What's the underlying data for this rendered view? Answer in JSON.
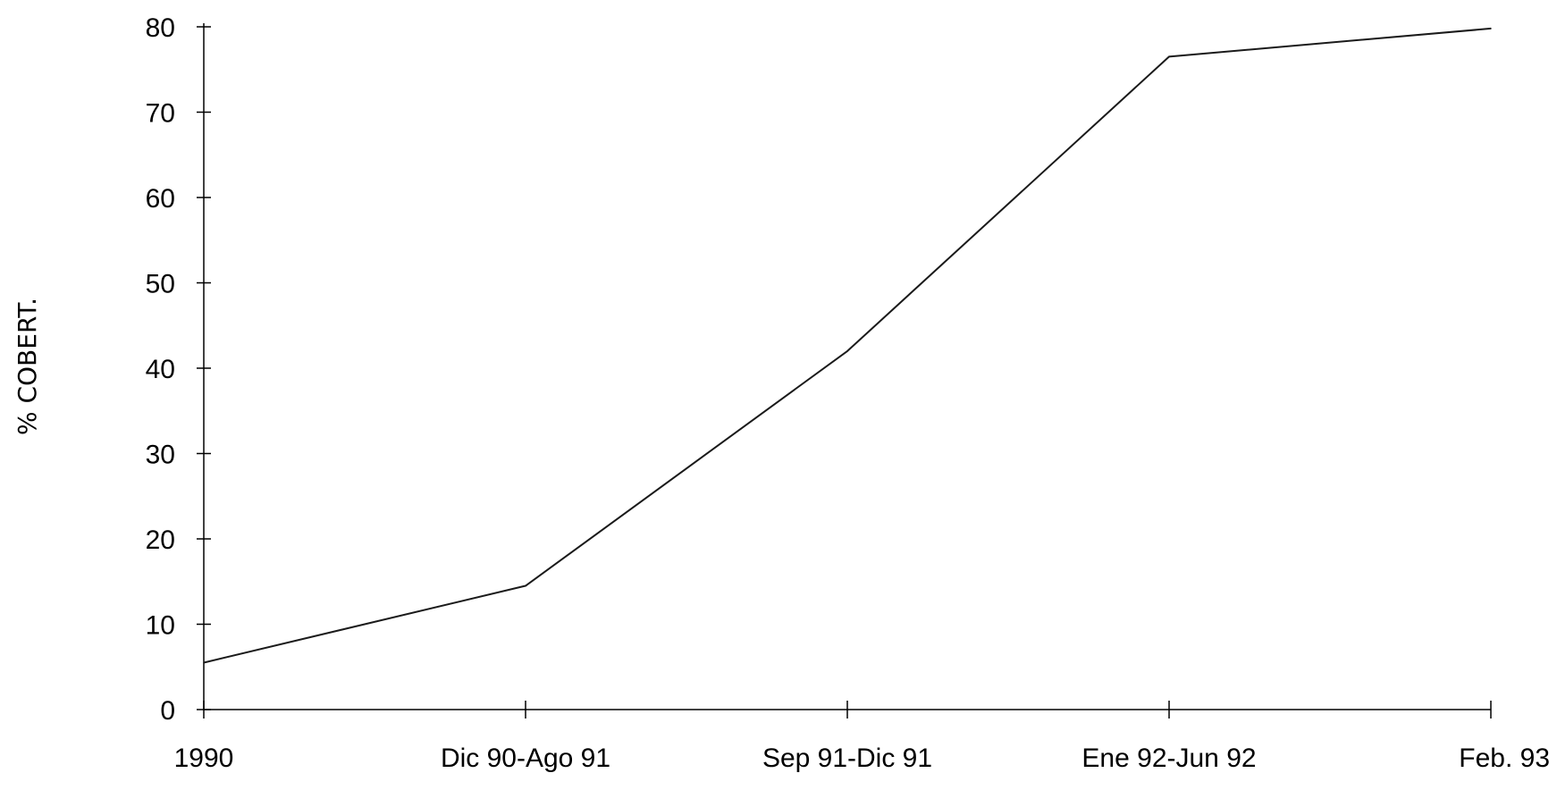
{
  "chart_data": {
    "type": "line",
    "title": "",
    "xlabel": "",
    "ylabel": "% COBERT.",
    "categories": [
      "1990",
      "Dic 90-Ago 91",
      "Sep 91-Dic 91",
      "Ene 92-Jun 92",
      "Feb. 93"
    ],
    "series": [
      {
        "values": [
          5.5,
          14.5,
          42,
          76.5,
          79.8
        ]
      }
    ],
    "ylim": [
      0,
      80
    ],
    "yticks": [
      "0",
      "10",
      "20",
      "30",
      "40",
      "50",
      "60",
      "70",
      "80"
    ],
    "grid": false,
    "legend": "none",
    "colors": {
      "line": "#1a1a1a",
      "axis": "#000000"
    }
  }
}
